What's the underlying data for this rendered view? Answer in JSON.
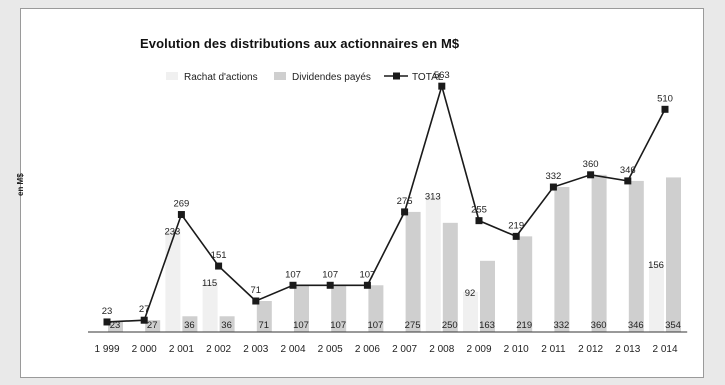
{
  "chart_data": {
    "type": "bar",
    "title": "Evolution des distributions aux actionnaires en M$",
    "ylabel": "en M$",
    "categories": [
      "1 999",
      "2 000",
      "2 001",
      "2 002",
      "2 003",
      "2 004",
      "2 005",
      "2 006",
      "2 007",
      "2 008",
      "2 009",
      "2 010",
      "2 011",
      "2 012",
      "2 013",
      "2 014"
    ],
    "series": [
      {
        "name": "Rachat d'actions",
        "values": [
          0,
          0,
          233,
          115,
          0,
          0,
          0,
          0,
          0,
          313,
          92,
          0,
          0,
          0,
          0,
          156
        ]
      },
      {
        "name": "Dividendes payés",
        "values": [
          23,
          27,
          36,
          36,
          71,
          107,
          107,
          107,
          275,
          250,
          163,
          219,
          332,
          360,
          346,
          354
        ]
      },
      {
        "name": "TOTAL",
        "type": "line",
        "values": [
          23,
          27,
          269,
          151,
          71,
          107,
          107,
          107,
          275,
          563,
          255,
          219,
          332,
          360,
          346,
          510
        ]
      }
    ],
    "top_labels": [
      "23",
      "27",
      "269",
      "151",
      "71",
      "107",
      "107",
      "107",
      "275",
      "563",
      "255",
      "219",
      "332",
      "360",
      "346",
      "510"
    ],
    "ylim": [
      0,
      600
    ],
    "grid": false,
    "legend": "top"
  },
  "colors": {
    "rachat": "#f0f0f0",
    "dividendes": "#cfcfcf",
    "total": "#1a1a1a"
  }
}
